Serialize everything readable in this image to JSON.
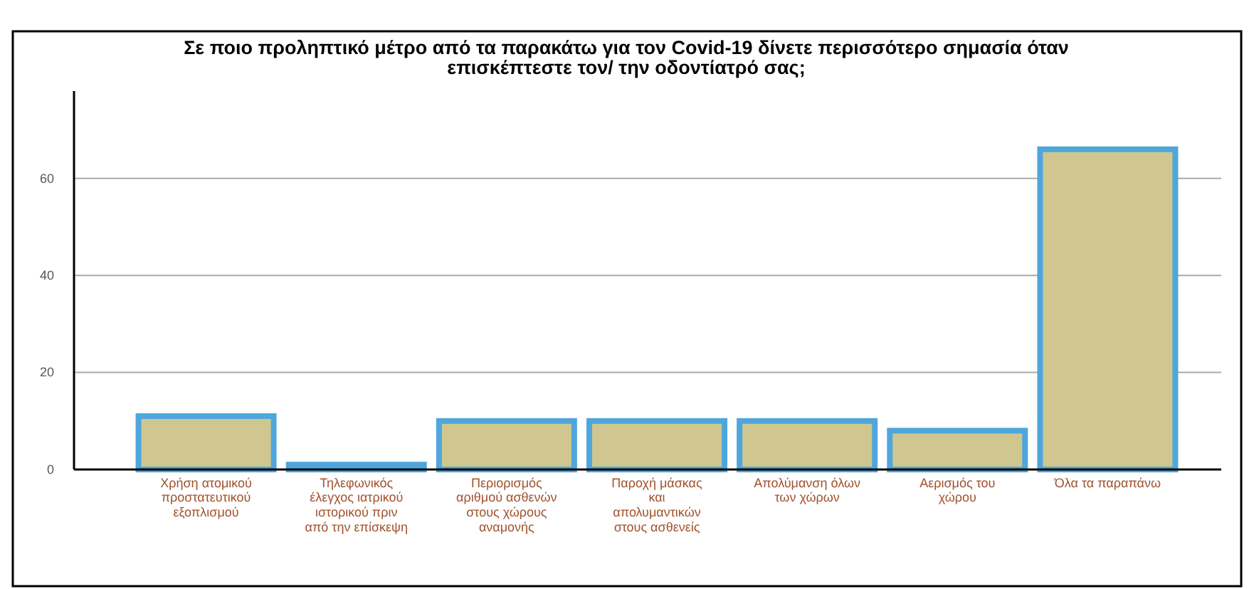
{
  "chart_data": {
    "type": "bar",
    "title": "Σε ποιο προληπτικό μέτρο από τα παρακάτω για τον Covid-19 δίνετε περισσότερο σημασία όταν επισκέπτεστε τον/ την οδοντίατρό σας;",
    "categories": [
      "Χρήση ατομικού προστατευτικού εξοπλισμού",
      "Τηλεφωνικός έλεγχος ιατρικού ιστορικού πριν από την επίσκεψη",
      "Περιορισμός αριθμού ασθενών στους χώρους αναμονής",
      "Παροχή μάσκας και απολυμαντικών στους ασθενείς",
      "Απολύμανση όλων των χώρων",
      "Αερισμός του χώρου",
      "Όλα τα παραπάνω"
    ],
    "values": [
      11,
      1,
      10,
      10,
      10,
      8,
      66
    ],
    "color": "#cfc78f",
    "ylim": [
      0,
      78
    ],
    "yticks": [
      0,
      20,
      40,
      60
    ],
    "grid": "y"
  }
}
